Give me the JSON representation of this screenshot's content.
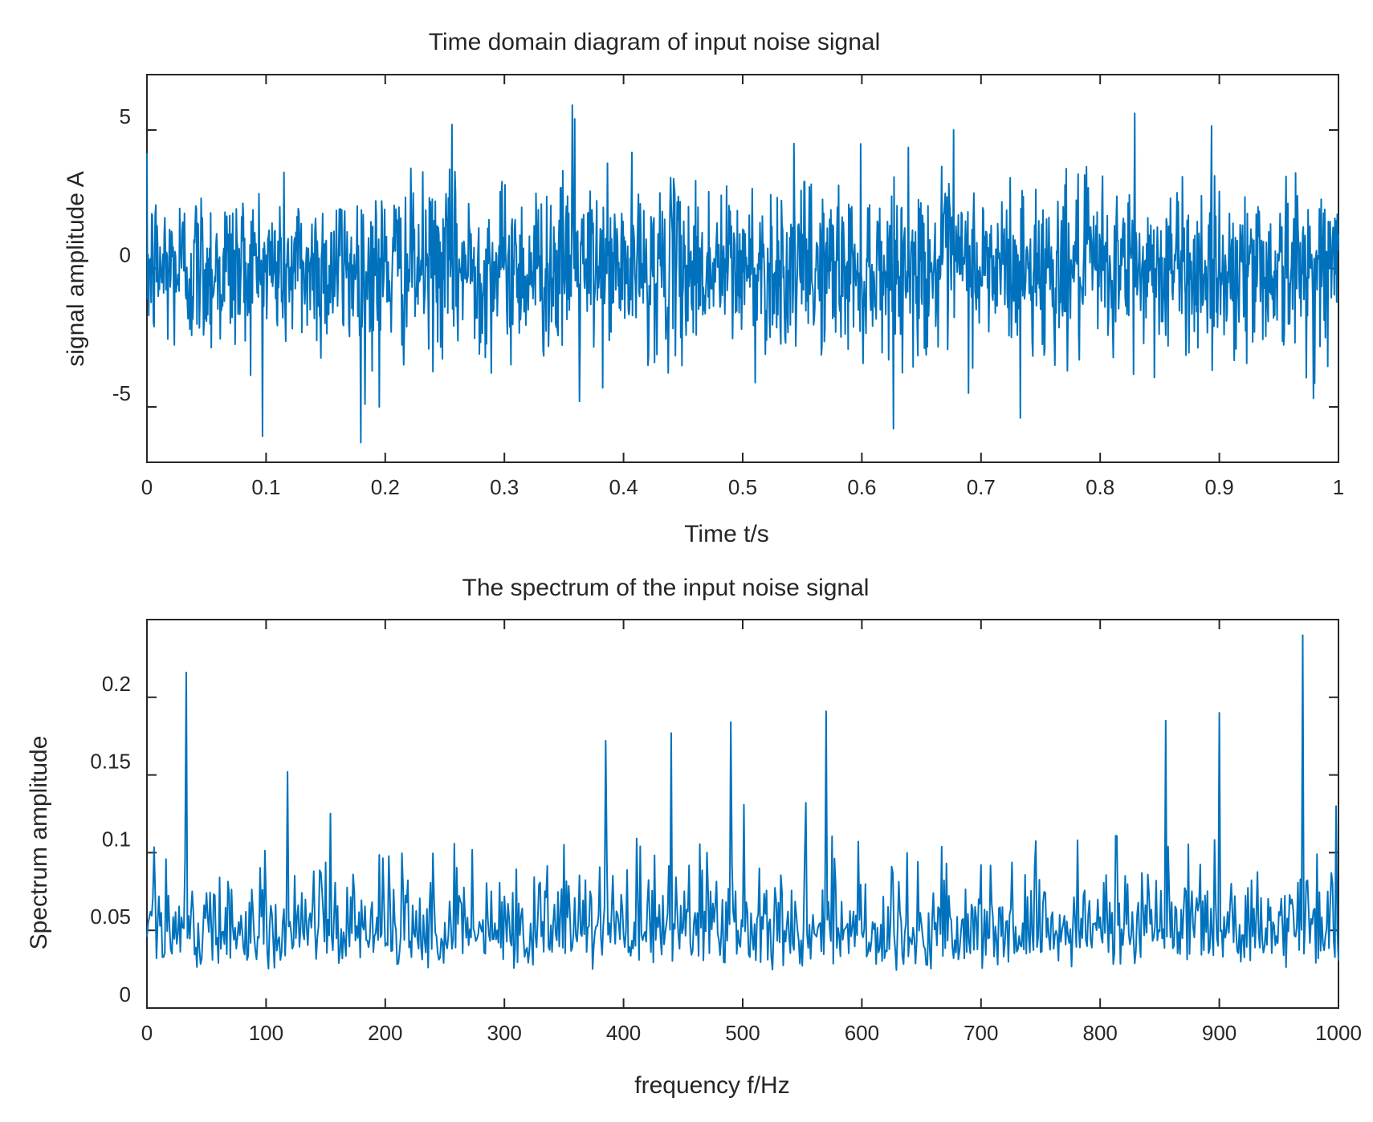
{
  "chart_data": [
    {
      "type": "line",
      "title": "Time domain diagram of input noise signal",
      "xlabel": "Time t/s",
      "ylabel": "signal amplitude A",
      "xlim": [
        0,
        1
      ],
      "ylim": [
        -7,
        7
      ],
      "xticks": [
        0,
        0.1,
        0.2,
        0.3,
        0.4,
        0.5,
        0.6,
        0.7,
        0.8,
        0.9,
        1
      ],
      "xtick_labels": [
        "0",
        "0.1",
        "0.2",
        "0.3",
        "0.4",
        "0.5",
        "0.6",
        "0.7",
        "0.8",
        "0.9",
        "1"
      ],
      "yticks": [
        -5,
        0,
        5
      ],
      "ytick_labels": [
        "-5",
        "0",
        "5"
      ],
      "series": [
        {
          "name": "input noise signal",
          "color": "#0072bd",
          "sample_count": 2000,
          "mean": 0,
          "std": 1.5,
          "notable_points": [
            {
              "x": 0.195,
              "y": -5.0
            },
            {
              "x": 0.183,
              "y": -4.9
            },
            {
              "x": 0.256,
              "y": 5.2
            },
            {
              "x": 0.357,
              "y": 5.9
            },
            {
              "x": 0.359,
              "y": 5.4
            },
            {
              "x": 0.363,
              "y": -4.8
            },
            {
              "x": 0.733,
              "y": -5.4
            },
            {
              "x": 0.677,
              "y": 5.0
            },
            {
              "x": 0.829,
              "y": 5.6
            }
          ]
        }
      ]
    },
    {
      "type": "line",
      "title": "The spectrum of the input noise signal",
      "xlabel": "frequency f/Hz",
      "ylabel": "Spectrum amplitude",
      "xlim": [
        0,
        1000
      ],
      "ylim": [
        0,
        0.25
      ],
      "xticks": [
        0,
        100,
        200,
        300,
        400,
        500,
        600,
        700,
        800,
        900,
        1000
      ],
      "xtick_labels": [
        "0",
        "100",
        "200",
        "300",
        "400",
        "500",
        "600",
        "700",
        "800",
        "900",
        "1000"
      ],
      "yticks": [
        0,
        0.05,
        0.1,
        0.15,
        0.2
      ],
      "ytick_labels": [
        "0",
        "0.05",
        "0.1",
        "0.15",
        "0.2"
      ],
      "series": [
        {
          "name": "spectrum amplitude",
          "color": "#0072bd",
          "sample_count": 1000,
          "mean": 0.065,
          "std": 0.03,
          "notable_points": [
            {
              "x": 33,
              "y": 0.216
            },
            {
              "x": 118,
              "y": 0.152
            },
            {
              "x": 385,
              "y": 0.172
            },
            {
              "x": 440,
              "y": 0.177
            },
            {
              "x": 490,
              "y": 0.184
            },
            {
              "x": 570,
              "y": 0.191
            },
            {
              "x": 855,
              "y": 0.185
            },
            {
              "x": 900,
              "y": 0.19
            },
            {
              "x": 970,
              "y": 0.24
            },
            {
              "x": 998,
              "y": 0.13
            }
          ]
        }
      ]
    }
  ]
}
